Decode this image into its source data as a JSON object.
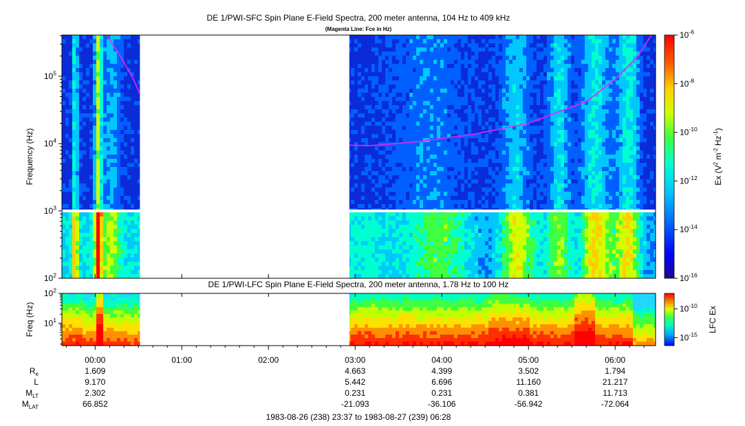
{
  "chart_data": [
    {
      "type": "heatmap",
      "title": "DE 1/PWI-SFC  Spin Plane E-Field Spectra, 200 meter antenna, 104 Hz to 409 kHz",
      "subtitle": "(Magenta Line: Fce in Hz)",
      "ylabel": "Frequency (Hz)",
      "yscale": "log",
      "ylim": [
        100,
        409000
      ],
      "y_ticks": [
        {
          "value": 100,
          "base": "10",
          "exp": "2"
        },
        {
          "value": 1000,
          "base": "10",
          "exp": "3"
        },
        {
          "value": 10000,
          "base": "10",
          "exp": "4"
        },
        {
          "value": 100000,
          "base": "10",
          "exp": "5"
        }
      ],
      "colorbar": {
        "label_main": "Ex (V",
        "label_sup1": "2",
        "label_mid": " m",
        "label_sup2": "-2",
        "label_mid2": " Hz",
        "label_sup3": "-1",
        "label_end": ")",
        "scale": "log",
        "range": [
          1e-16,
          1e-06
        ],
        "ticks": [
          {
            "value": 1e-06,
            "base": "10",
            "exp": "-6"
          },
          {
            "value": 1e-08,
            "base": "10",
            "exp": "-8"
          },
          {
            "value": 1e-10,
            "base": "10",
            "exp": "-10"
          },
          {
            "value": 1e-12,
            "base": "10",
            "exp": "-12"
          },
          {
            "value": 1e-14,
            "base": "10",
            "exp": "-14"
          },
          {
            "value": 1e-16,
            "base": "10",
            "exp": "-16"
          }
        ],
        "colors": [
          "#1a0a8c",
          "#0000ff",
          "#0060ff",
          "#00c8ff",
          "#00ffd0",
          "#40ff40",
          "#d0ff00",
          "#ffd000",
          "#ff6000",
          "#ff0000"
        ]
      },
      "data_gap": {
        "start_min": 31,
        "end_min": 176
      },
      "fce_line": {
        "name": "Fce",
        "color": "#ee22ee",
        "segments": [
          {
            "t": [
              8,
              18,
              26,
              31
            ],
            "f": [
              409000,
              190000,
              95000,
              55000
            ]
          },
          {
            "t": [
              176,
              190,
              220,
              260,
              300,
              340,
              360,
              376,
              385
            ],
            "f": [
              9500,
              9300,
              10500,
              13500,
              20000,
              42000,
              90000,
              200000,
              409000
            ]
          }
        ]
      }
    },
    {
      "type": "heatmap",
      "title": "DE 1/PWI-LFC  Spin Plane E-Field Spectra, 200 meter antenna, 1.78 Hz to 100 Hz",
      "ylabel": "Freq (Hz)",
      "yscale": "log",
      "ylim": [
        1.78,
        100
      ],
      "y_ticks": [
        {
          "value": 10,
          "base": "10",
          "exp": "1"
        },
        {
          "value": 100,
          "base": "10",
          "exp": "2"
        }
      ],
      "colorbar": {
        "label": "LFC Ex",
        "scale": "log",
        "ticks": [
          {
            "value": 1e-10,
            "base": "10",
            "exp": "-10"
          },
          {
            "value": 1e-15,
            "base": "10",
            "exp": "-15"
          }
        ]
      },
      "data_gap": {
        "start_min": 31,
        "end_min": 176
      }
    }
  ],
  "time_axis": {
    "start_min": -23,
    "end_min": 388,
    "ticks": [
      {
        "min": 0,
        "label": "00:00"
      },
      {
        "min": 60,
        "label": "01:00"
      },
      {
        "min": 120,
        "label": "02:00"
      },
      {
        "min": 180,
        "label": "03:00"
      },
      {
        "min": 240,
        "label": "04:00"
      },
      {
        "min": 300,
        "label": "05:00"
      },
      {
        "min": 360,
        "label": "06:00"
      }
    ]
  },
  "ephemeris": {
    "rows": [
      {
        "label": "R",
        "sub": "e",
        "values": [
          "1.609",
          "",
          "",
          "4.663",
          "4.399",
          "3.502",
          "1.794"
        ]
      },
      {
        "label": "L",
        "sub": "",
        "values": [
          "9.170",
          "",
          "",
          "5.442",
          "6.696",
          "11.160",
          "21.217"
        ]
      },
      {
        "label": "M",
        "sub": "LT",
        "values": [
          "2.302",
          "",
          "",
          "0.231",
          "0.231",
          "0.381",
          "11.713"
        ]
      },
      {
        "label": "M",
        "sub": "LAT",
        "values": [
          "66.852",
          "",
          "",
          "-21.093",
          "-36.106",
          "-56.942",
          "-72.064"
        ]
      }
    ]
  },
  "time_range": "1983-08-26 (238) 23:37 to 1983-08-27 (239) 06:28"
}
